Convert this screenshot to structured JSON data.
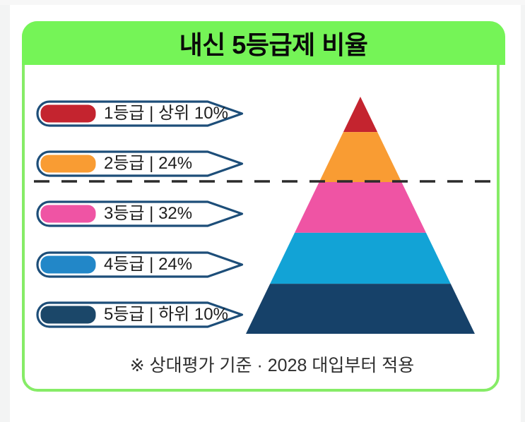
{
  "header": {
    "title": "내신 5등급제 비율",
    "background": "#75F457",
    "text_color": "#0A0A0A"
  },
  "card": {
    "border_color": "#86EC67",
    "background": "#FFFFFF"
  },
  "legend": {
    "border_color": "#1D4E79",
    "items": [
      {
        "grade": "1등급",
        "label": "1등급 | 상위 10%",
        "color": "#C4242F"
      },
      {
        "grade": "2등급",
        "label": "2등급 | 24%",
        "color": "#F99C33"
      },
      {
        "grade": "3등급",
        "label": "3등급 | 32%",
        "color": "#EF54A4"
      },
      {
        "grade": "4등급",
        "label": "4등급 | 24%",
        "color": "#2287C8"
      },
      {
        "grade": "5등급",
        "label": "5등급 | 하위 10%",
        "color": "#1B4769"
      }
    ]
  },
  "divider": {
    "style": "dashed",
    "color": "#2B2B2B"
  },
  "footer": {
    "note": "※ 상대평가 기준 · 2028 대입부터 적용"
  },
  "chart_data": {
    "type": "pyramid",
    "title": "내신 5등급제 비율",
    "categories": [
      "1등급",
      "2등급",
      "3등급",
      "4등급",
      "5등급"
    ],
    "values": [
      10,
      24,
      32,
      24,
      10
    ],
    "value_labels": [
      "상위 10%",
      "24%",
      "32%",
      "24%",
      "하위 10%"
    ],
    "colors": [
      "#C4242F",
      "#F99C33",
      "#EF54A4",
      "#12A3D6",
      "#164169"
    ],
    "band_fractions": [
      0.149,
      0.36,
      0.574,
      0.789,
      1.0
    ],
    "divider_after_band_index": 1,
    "legend_position": "left",
    "grid": false
  }
}
